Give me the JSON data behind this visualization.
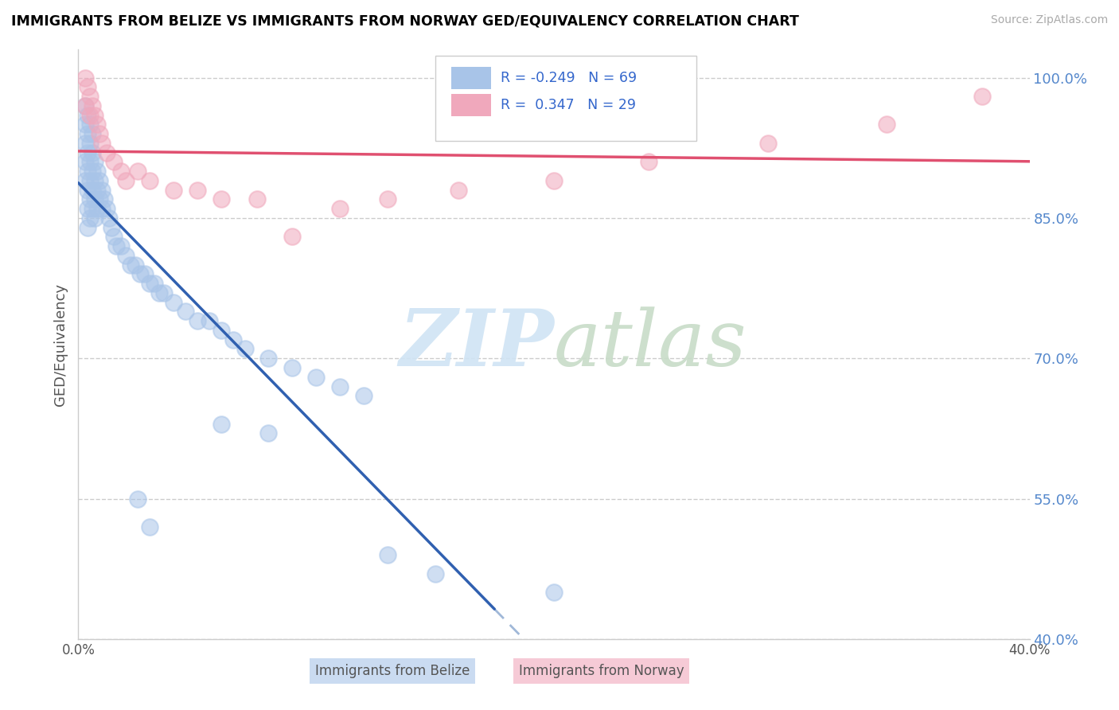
{
  "title": "IMMIGRANTS FROM BELIZE VS IMMIGRANTS FROM NORWAY GED/EQUIVALENCY CORRELATION CHART",
  "source": "Source: ZipAtlas.com",
  "xlabel_bottom": "Immigrants from Belize",
  "xlabel_bottom2": "Immigrants from Norway",
  "ylabel": "GED/Equivalency",
  "xlim": [
    0.0,
    0.4
  ],
  "ylim": [
    0.4,
    1.03
  ],
  "legend_R_blue": "-0.249",
  "legend_N_blue": "69",
  "legend_R_pink": "0.347",
  "legend_N_pink": "29",
  "blue_color": "#a8c4e8",
  "pink_color": "#f0a8bc",
  "trend_blue_color": "#3060b0",
  "trend_pink_color": "#e05070",
  "trend_blue_dashed_color": "#a0b8d8",
  "watermark_zip_color": "#d0e4f4",
  "watermark_atlas_color": "#c8dcc8",
  "belize_x": [
    0.003,
    0.003,
    0.003,
    0.003,
    0.003,
    0.004,
    0.004,
    0.004,
    0.004,
    0.004,
    0.004,
    0.004,
    0.005,
    0.005,
    0.005,
    0.005,
    0.005,
    0.005,
    0.006,
    0.006,
    0.006,
    0.006,
    0.006,
    0.007,
    0.007,
    0.007,
    0.007,
    0.008,
    0.008,
    0.008,
    0.009,
    0.009,
    0.01,
    0.01,
    0.011,
    0.012,
    0.013,
    0.014,
    0.015,
    0.016,
    0.018,
    0.02,
    0.022,
    0.024,
    0.026,
    0.028,
    0.03,
    0.032,
    0.034,
    0.036,
    0.04,
    0.045,
    0.05,
    0.055,
    0.06,
    0.065,
    0.07,
    0.08,
    0.09,
    0.1,
    0.11,
    0.12,
    0.025,
    0.03,
    0.06,
    0.08,
    0.13,
    0.15,
    0.2
  ],
  "belize_y": [
    0.97,
    0.95,
    0.93,
    0.91,
    0.89,
    0.96,
    0.94,
    0.92,
    0.9,
    0.88,
    0.86,
    0.84,
    0.95,
    0.93,
    0.91,
    0.89,
    0.87,
    0.85,
    0.94,
    0.92,
    0.9,
    0.88,
    0.86,
    0.91,
    0.89,
    0.87,
    0.85,
    0.9,
    0.88,
    0.86,
    0.89,
    0.87,
    0.88,
    0.86,
    0.87,
    0.86,
    0.85,
    0.84,
    0.83,
    0.82,
    0.82,
    0.81,
    0.8,
    0.8,
    0.79,
    0.79,
    0.78,
    0.78,
    0.77,
    0.77,
    0.76,
    0.75,
    0.74,
    0.74,
    0.73,
    0.72,
    0.71,
    0.7,
    0.69,
    0.68,
    0.67,
    0.66,
    0.55,
    0.52,
    0.63,
    0.62,
    0.49,
    0.47,
    0.45
  ],
  "norway_x": [
    0.003,
    0.003,
    0.004,
    0.005,
    0.005,
    0.006,
    0.007,
    0.008,
    0.009,
    0.01,
    0.012,
    0.015,
    0.018,
    0.02,
    0.025,
    0.03,
    0.04,
    0.05,
    0.06,
    0.075,
    0.09,
    0.11,
    0.13,
    0.16,
    0.2,
    0.24,
    0.29,
    0.34,
    0.38
  ],
  "norway_y": [
    1.0,
    0.97,
    0.99,
    0.98,
    0.96,
    0.97,
    0.96,
    0.95,
    0.94,
    0.93,
    0.92,
    0.91,
    0.9,
    0.89,
    0.9,
    0.89,
    0.88,
    0.88,
    0.87,
    0.87,
    0.83,
    0.86,
    0.87,
    0.88,
    0.89,
    0.91,
    0.93,
    0.95,
    0.98
  ]
}
